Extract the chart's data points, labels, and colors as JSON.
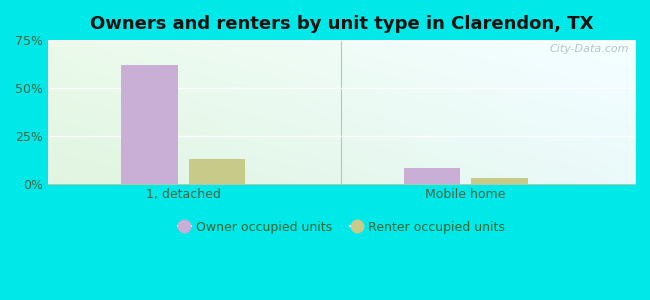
{
  "title": "Owners and renters by unit type in Clarendon, TX",
  "categories": [
    "1, detached",
    "Mobile home"
  ],
  "owner_values": [
    62,
    8
  ],
  "renter_values": [
    13,
    3
  ],
  "owner_color": "#c9aed6",
  "renter_color": "#c8ca8a",
  "owner_label": "Owner occupied units",
  "renter_label": "Renter occupied units",
  "ylim": [
    0,
    75
  ],
  "yticks": [
    0,
    25,
    50,
    75
  ],
  "ytick_labels": [
    "0%",
    "25%",
    "50%",
    "75%"
  ],
  "background_outer": "#00e8e8",
  "bar_width": 0.1,
  "group_positions": [
    0.22,
    0.72
  ],
  "title_fontsize": 13,
  "watermark": "City-Data.com"
}
